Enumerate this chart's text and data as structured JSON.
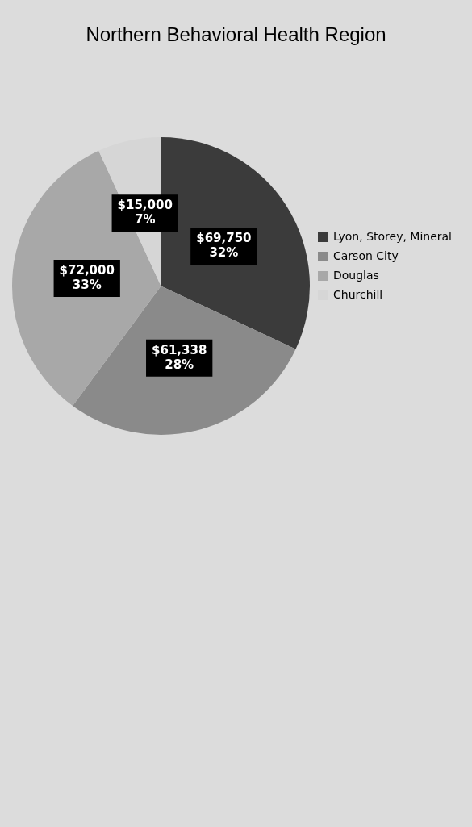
{
  "chart_data": {
    "type": "pie",
    "title": "Northern Behavioral Health Region",
    "categories": [
      "Lyon, Storey, Mineral",
      "Carson City",
      "Douglas",
      "Churchill"
    ],
    "values": [
      69750,
      61338,
      72000,
      15000
    ],
    "colors": [
      "#3b3b3b",
      "#8a8a8a",
      "#a8a8a8",
      "#d6d6d6"
    ],
    "value_labels": [
      "$69,750\n32%",
      "$61,338\n28%",
      "$72,000\n33%",
      "$15,000\n7%"
    ],
    "legend": "right"
  }
}
